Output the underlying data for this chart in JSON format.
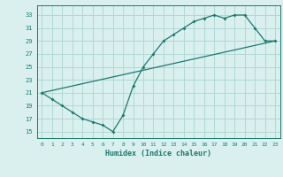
{
  "line1_x": [
    0,
    1,
    2,
    3,
    4,
    5,
    6,
    7,
    8,
    9,
    10,
    11,
    12,
    13,
    14,
    15,
    16,
    17,
    18,
    19,
    20,
    21,
    22,
    23
  ],
  "line1_y": [
    21,
    20,
    19,
    18,
    17,
    16.5,
    16,
    15,
    17.5,
    22,
    25,
    27,
    29,
    30,
    31,
    32,
    32.5,
    33,
    32.5,
    33,
    33,
    31,
    29,
    29
  ],
  "line2_x": [
    0,
    23
  ],
  "line2_y": [
    21,
    29
  ],
  "line_color": "#1a7a6e",
  "bg_color": "#d9f0ef",
  "grid_color": "#b0d8d5",
  "xlabel": "Humidex (Indice chaleur)",
  "yticks": [
    15,
    17,
    19,
    21,
    23,
    25,
    27,
    29,
    31,
    33
  ],
  "xticks": [
    0,
    1,
    2,
    3,
    4,
    5,
    6,
    7,
    8,
    9,
    10,
    11,
    12,
    13,
    14,
    15,
    16,
    17,
    18,
    19,
    20,
    21,
    22,
    23
  ],
  "xlim": [
    -0.5,
    23.5
  ],
  "ylim": [
    14,
    34.5
  ]
}
